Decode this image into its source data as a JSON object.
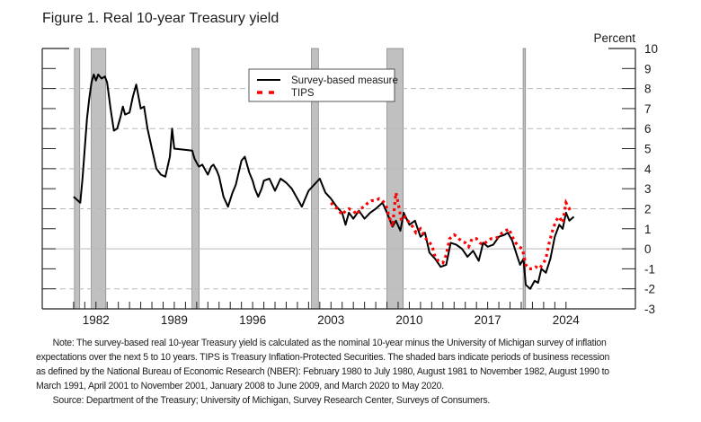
{
  "title": "Figure 1. Real 10-year Treasury yield",
  "note": {
    "lines": [
      "Note: The survey-based real 10-year Treasury yield is calculated as the nominal 10-year minus the University of Michigan survey of inflation expectations over the next 5 to 10 years. TIPS is Treasury Inflation-Protected Securities. The shaded bars indicate periods of business recession as defined by the National Bureau of Economic Research (NBER): February 1980 to July 1980, August 1981 to November 1982, August 1990 to March 1991, April 2001 to November 2001, January 2008 to June 2009, and March 2020 to May 2020."
    ],
    "source": "Source: Department of the Treasury; University of Michigan, Survey Research Center, Surveys of Consumers."
  },
  "chart_data": {
    "type": "line",
    "title": "Figure 1. Real 10-year Treasury yield",
    "xlabel": "",
    "ylabel": "Percent",
    "xlim": [
      1977.2,
      2030.2
    ],
    "ylim": [
      -3,
      10
    ],
    "y_ticks": [
      10,
      9,
      8,
      7,
      6,
      5,
      4,
      3,
      2,
      1,
      0,
      -1,
      -2,
      -3
    ],
    "y_tick_labels": [
      "10",
      "9",
      "8",
      "7",
      "6",
      "5",
      "4",
      "3",
      "2",
      "1",
      "0",
      "-1",
      "-2",
      "-3"
    ],
    "gridlines_dashed": [
      8,
      6,
      4,
      2,
      -2
    ],
    "zero_line": 0,
    "x_tick_labels": [
      "1982",
      "1989",
      "1996",
      "2003",
      "2010",
      "2017",
      "2024"
    ],
    "x_minor_ticks": [
      1980,
      1981,
      1982,
      1983,
      1984,
      1985,
      1986,
      1987,
      1988,
      1989,
      1990,
      1991,
      1992,
      1993,
      1994,
      1995,
      1996,
      1997,
      1998,
      1999,
      2000,
      2001,
      2002,
      2003,
      2004,
      2005,
      2006,
      2007,
      2008,
      2009,
      2010,
      2011,
      2012,
      2013,
      2014,
      2015,
      2016,
      2017,
      2018,
      2019,
      2020,
      2021,
      2022,
      2023,
      2024
    ],
    "legend": {
      "placement": "top-center",
      "entries": [
        {
          "label": "Survey-based measure",
          "style": "solid",
          "color": "#000000"
        },
        {
          "label": "TIPS",
          "style": "dotted",
          "color": "#ff0000"
        }
      ]
    },
    "recessions": [
      {
        "start": 1980.08,
        "end": 1980.55,
        "label": "February 1980 to July 1980"
      },
      {
        "start": 1981.58,
        "end": 1982.88,
        "label": "August 1981 to November 1982"
      },
      {
        "start": 1990.58,
        "end": 1991.22,
        "label": "August 1990 to March 1991"
      },
      {
        "start": 2001.25,
        "end": 2001.88,
        "label": "April 2001 to November 2001"
      },
      {
        "start": 2008.0,
        "end": 2009.45,
        "label": "January 2008 to June 2009"
      },
      {
        "start": 2020.17,
        "end": 2020.38,
        "label": "March 2020 to May 2020"
      }
    ],
    "recession_color": "#c0c0c0",
    "series": [
      {
        "name": "Survey-based measure",
        "color": "#000000",
        "x": [
          1980.0,
          1980.4,
          1980.6,
          1980.8,
          1981.0,
          1981.2,
          1981.4,
          1981.6,
          1981.8,
          1982.0,
          1982.2,
          1982.5,
          1982.8,
          1983.0,
          1983.3,
          1983.6,
          1983.9,
          1984.2,
          1984.4,
          1984.6,
          1985.0,
          1985.3,
          1985.6,
          1986.0,
          1986.3,
          1986.6,
          1987.0,
          1987.4,
          1987.8,
          1988.2,
          1988.6,
          1988.8,
          1989.0,
          1990.6,
          1990.8,
          1991.0,
          1991.2,
          1991.5,
          1991.8,
          1992.0,
          1992.3,
          1992.5,
          1992.8,
          1993.0,
          1993.4,
          1993.8,
          1994.2,
          1994.5,
          1995.0,
          1995.3,
          1995.7,
          1996.0,
          1996.2,
          1996.5,
          1996.8,
          1997.0,
          1997.5,
          1998.0,
          1998.5,
          1999.0,
          1999.5,
          2000.0,
          2000.4,
          2000.7,
          2001.0,
          2001.5,
          2002.0,
          2002.5,
          2003.0,
          2003.5,
          2004.0,
          2004.3,
          2004.6,
          2005.0,
          2005.5,
          2006.0,
          2006.5,
          2007.0,
          2007.6,
          2008.0,
          2008.5,
          2008.8,
          2009.2,
          2009.5,
          2010.0,
          2010.5,
          2011.0,
          2011.4,
          2011.8,
          2012.3,
          2012.8,
          2013.3,
          2013.7,
          2014.2,
          2014.7,
          2015.2,
          2015.7,
          2016.2,
          2016.6,
          2017.0,
          2017.5,
          2018.0,
          2018.5,
          2018.8,
          2019.2,
          2019.6,
          2019.9,
          2020.2,
          2020.4,
          2020.8,
          2021.2,
          2021.5,
          2021.8,
          2022.2,
          2022.6,
          2023.0,
          2023.4,
          2023.7,
          2024.0,
          2024.3,
          2024.7
        ],
        "values": [
          2.6,
          2.4,
          2.3,
          3.5,
          5.0,
          6.5,
          7.5,
          8.3,
          8.7,
          8.4,
          8.7,
          8.5,
          8.6,
          8.3,
          7.0,
          5.9,
          6.0,
          6.6,
          7.1,
          6.7,
          6.8,
          7.6,
          8.2,
          7.0,
          7.1,
          6.0,
          5.0,
          4.0,
          3.7,
          3.6,
          4.6,
          6.0,
          5.0,
          4.9,
          4.5,
          4.3,
          4.1,
          4.2,
          3.9,
          3.7,
          4.1,
          4.2,
          3.9,
          3.6,
          2.6,
          2.1,
          2.8,
          3.2,
          4.4,
          4.6,
          3.8,
          3.4,
          3.0,
          2.6,
          3.0,
          3.4,
          3.5,
          2.9,
          3.5,
          3.3,
          3.0,
          2.5,
          2.1,
          2.5,
          2.9,
          3.2,
          3.5,
          2.8,
          2.5,
          2.1,
          1.8,
          1.2,
          1.8,
          1.5,
          1.9,
          1.5,
          1.8,
          2.0,
          2.3,
          1.8,
          1.1,
          1.4,
          0.9,
          1.8,
          1.2,
          1.4,
          0.6,
          0.8,
          -0.2,
          -0.5,
          -0.9,
          -0.8,
          0.3,
          0.2,
          0.0,
          -0.4,
          -0.1,
          -0.6,
          0.3,
          0.1,
          0.2,
          0.6,
          0.7,
          0.8,
          0.4,
          -0.3,
          -0.8,
          -0.5,
          -1.8,
          -2.0,
          -1.6,
          -1.7,
          -1.0,
          -1.2,
          -0.5,
          0.6,
          1.2,
          1.0,
          1.8,
          1.4,
          1.6
        ]
      },
      {
        "name": "TIPS",
        "color": "#ff0000",
        "x": [
          2003.0,
          2003.3,
          2003.6,
          2004.0,
          2004.3,
          2004.6,
          2005.0,
          2005.3,
          2005.6,
          2006.0,
          2006.3,
          2006.6,
          2007.0,
          2007.3,
          2007.6,
          2007.9,
          2008.2,
          2008.5,
          2008.8,
          2009.0,
          2009.3,
          2009.6,
          2010.0,
          2010.3,
          2010.6,
          2011.0,
          2011.3,
          2011.6,
          2012.0,
          2012.3,
          2012.6,
          2013.0,
          2013.3,
          2013.6,
          2014.0,
          2014.3,
          2014.6,
          2015.0,
          2015.3,
          2015.6,
          2016.0,
          2016.3,
          2016.6,
          2017.0,
          2017.3,
          2017.6,
          2018.0,
          2018.3,
          2018.6,
          2018.9,
          2019.2,
          2019.5,
          2019.8,
          2020.1,
          2020.4,
          2020.7,
          2021.0,
          2021.3,
          2021.6,
          2021.9,
          2022.2,
          2022.5,
          2022.8,
          2023.1,
          2023.4,
          2023.7,
          2024.0,
          2024.3,
          2024.6
        ],
        "values": [
          2.3,
          2.1,
          2.0,
          1.7,
          1.9,
          2.0,
          1.9,
          1.7,
          2.0,
          2.1,
          2.3,
          2.4,
          2.4,
          2.5,
          2.4,
          2.2,
          1.6,
          1.1,
          2.8,
          2.3,
          1.4,
          1.6,
          1.3,
          1.1,
          0.8,
          1.0,
          0.7,
          0.4,
          0.2,
          -0.4,
          -0.6,
          -0.7,
          -0.3,
          0.5,
          0.7,
          0.6,
          0.4,
          0.3,
          0.1,
          0.5,
          0.5,
          0.3,
          0.2,
          0.4,
          0.5,
          0.5,
          0.6,
          0.8,
          0.9,
          1.0,
          0.6,
          0.3,
          0.1,
          0.0,
          -0.8,
          -1.0,
          -1.0,
          -0.9,
          -1.0,
          -0.8,
          -0.5,
          0.3,
          0.9,
          1.4,
          1.6,
          1.3,
          2.3,
          2.0,
          2.1
        ]
      }
    ]
  }
}
